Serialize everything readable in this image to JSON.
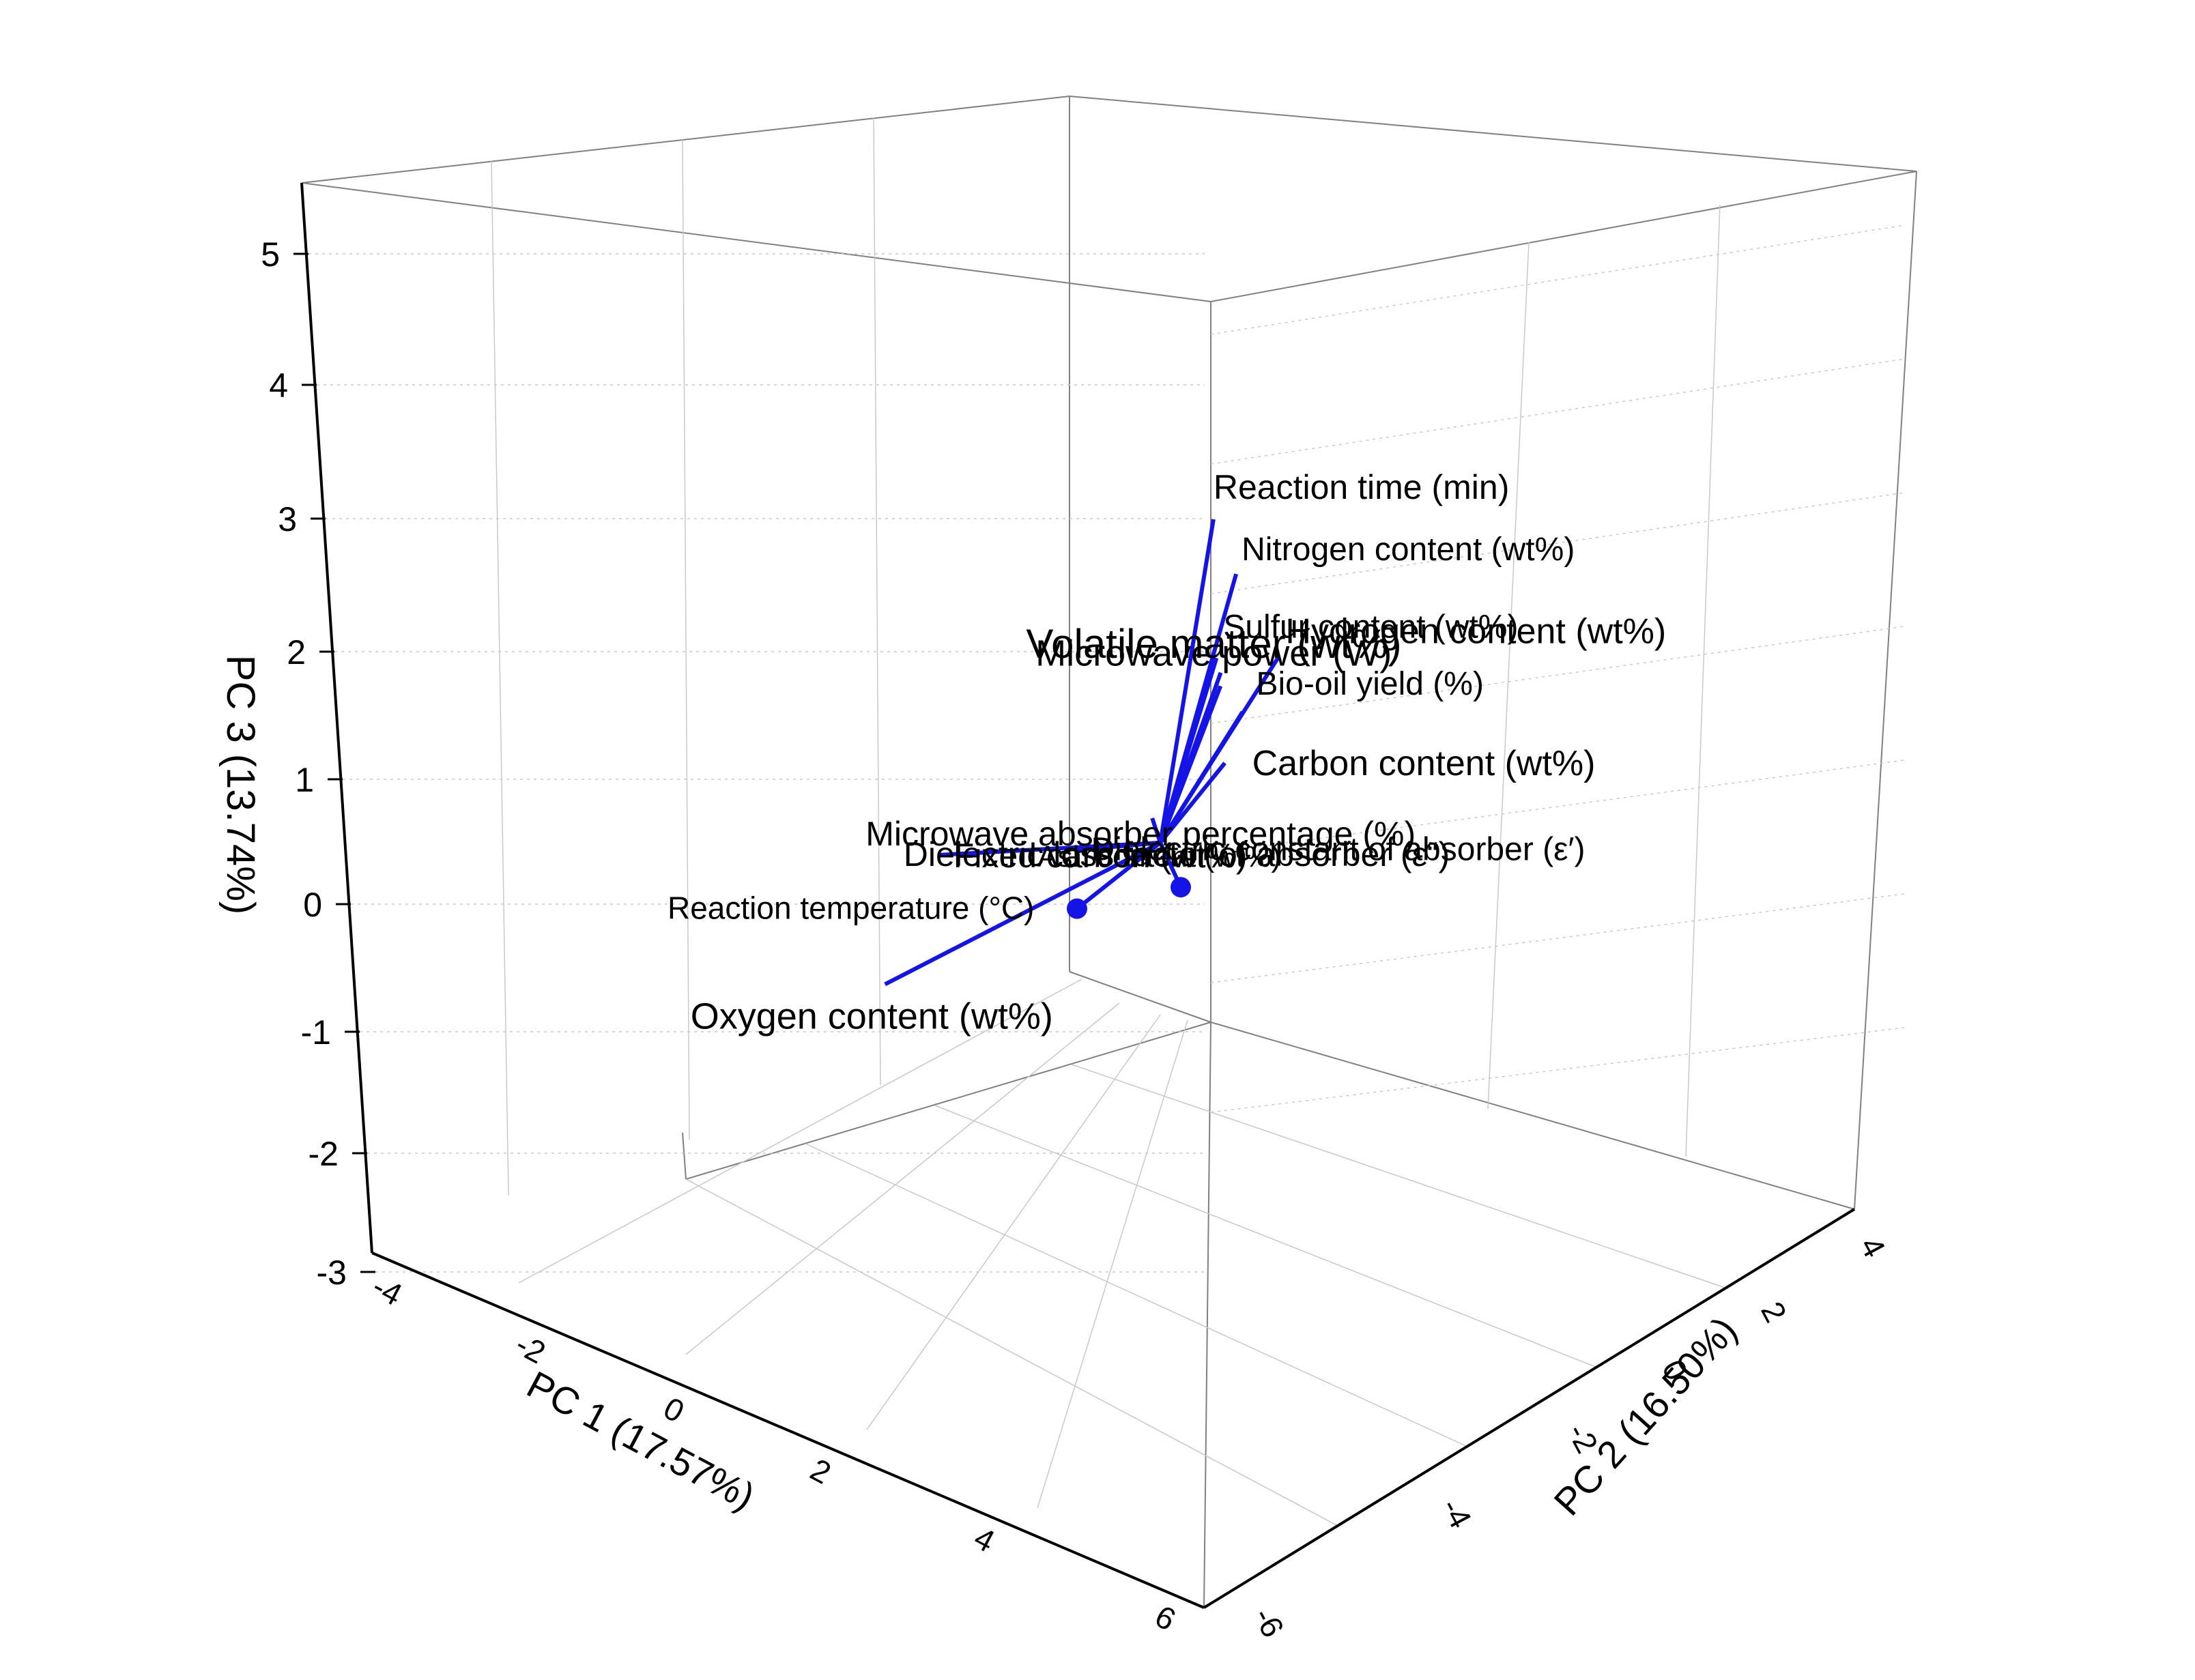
{
  "chart_data": {
    "type": "3d-biplot",
    "title": "",
    "axes": {
      "x": {
        "label": "PC 1 (17.57%)",
        "range": [
          -5,
          6
        ],
        "ticks": [
          "-4",
          "-2",
          "0",
          "2",
          "4",
          "6"
        ]
      },
      "y": {
        "label": "PC 2 (16.50%)",
        "range": [
          -6,
          4
        ],
        "ticks": [
          "-6",
          "-4",
          "-2",
          "0",
          "2",
          "4"
        ]
      },
      "z": {
        "label": "PC 3 (13.74%)",
        "range": [
          -3,
          5.5
        ],
        "ticks": [
          "5",
          "4",
          "3",
          "2",
          "1",
          "0",
          "-1",
          "-2",
          "-3"
        ]
      }
    },
    "grid": true,
    "vector_color": "#1414e6",
    "vectors": [
      {
        "label": "Reaction time (min)",
        "pc1": -0.2,
        "pc2": 0.5,
        "pc3": 5.2,
        "marker": "arrow"
      },
      {
        "label": "Nitrogen content (wt%)",
        "pc1": 0.3,
        "pc2": 1.6,
        "pc3": 3.8,
        "marker": "arrow"
      },
      {
        "label": "Volatile matter (wt%)",
        "pc1": -0.8,
        "pc2": -0.3,
        "pc3": 3.3,
        "marker": "arrow"
      },
      {
        "label": "Microwave power (W)",
        "pc1": -0.6,
        "pc2": 0.0,
        "pc3": 2.9,
        "marker": "arrow"
      },
      {
        "label": "Sulfur content (wt%)",
        "pc1": 0.1,
        "pc2": 1.0,
        "pc3": 2.7,
        "marker": "arrow"
      },
      {
        "label": "Hydrogen content (wt%)",
        "pc1": 0.8,
        "pc2": 3.0,
        "pc3": 1.9,
        "marker": "arrow"
      },
      {
        "label": "Bio-oil yield (%)",
        "pc1": 0.5,
        "pc2": 2.0,
        "pc3": 1.4,
        "marker": "arrow"
      },
      {
        "label": "Carbon content (wt%)",
        "pc1": 1.6,
        "pc2": 3.4,
        "pc3": -0.4,
        "marker": "arrow"
      },
      {
        "label": "Dielectric loss factor of absorber (ε“)",
        "pc1": 0.5,
        "pc2": 0.9,
        "pc3": -0.3,
        "marker": "arrow"
      },
      {
        "label": "Microwave absorber percentage (%)",
        "pc1": 1.4,
        "pc2": 2.0,
        "pc3": -0.9,
        "marker": "arrow"
      },
      {
        "label": "Dielectric constant of absorber (ε′)",
        "pc1": 1.5,
        "pc2": 1.0,
        "pc3": -1.3,
        "marker": "arrow"
      },
      {
        "label": "Fixed carbon (wt%)",
        "pc1": 3.4,
        "pc2": 1.8,
        "pc3": -2.8,
        "marker": "arrow"
      },
      {
        "label": "Ash content (wt%)",
        "pc1": -0.6,
        "pc2": -0.6,
        "pc3": -0.2,
        "marker": "dot"
      },
      {
        "label": "Reaction temperature (°C)",
        "pc1": 0.5,
        "pc2": -0.5,
        "pc3": -1.3,
        "marker": "dot"
      },
      {
        "label": "Oxygen content (wt%)",
        "pc1": 0.5,
        "pc2": -3.4,
        "pc3": -2.0,
        "marker": "arrow"
      }
    ]
  }
}
